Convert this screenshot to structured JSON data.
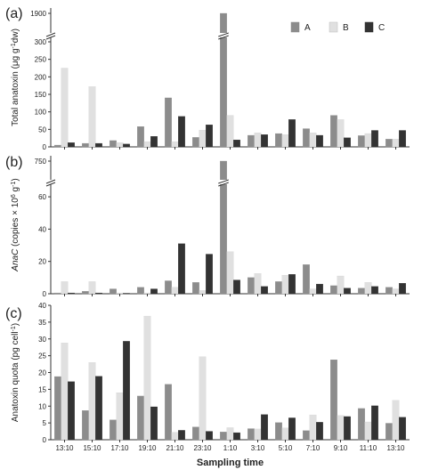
{
  "chart_data": [
    {
      "type": "bar",
      "panel_label": "(a)",
      "ylabel_prefix": "Total anatoxin  (μg g",
      "ylabel_sup": "-1",
      "ylabel_suffix": "dw)",
      "axis_break": {
        "low_max": 300,
        "high_value": 1900
      },
      "yticks": [
        0,
        50,
        100,
        150,
        200,
        250,
        300
      ],
      "yticks_high": [
        1900
      ],
      "ylim": [
        0,
        300
      ],
      "categories": [
        "13:10",
        "15:10",
        "17:10",
        "19:10",
        "21:10",
        "23:10",
        "1:10",
        "3:10",
        "5:10",
        "7:10",
        "9:10",
        "11:10",
        "13:10"
      ],
      "series": [
        {
          "name": "A",
          "color": "#8c8c8c",
          "values": [
            5,
            10,
            18,
            58,
            140,
            27,
            1880,
            33,
            38,
            52,
            90,
            32,
            22
          ]
        },
        {
          "name": "B",
          "color": "#e0e0e0",
          "values": [
            225,
            172,
            12,
            15,
            15,
            48,
            90,
            40,
            35,
            40,
            78,
            38,
            22
          ]
        },
        {
          "name": "C",
          "color": "#333333",
          "values": [
            12,
            10,
            8,
            30,
            87,
            63,
            20,
            35,
            78,
            33,
            26,
            47,
            47
          ]
        }
      ],
      "legend": {
        "position": "top-right",
        "entries": [
          "A",
          "B",
          "C"
        ]
      }
    },
    {
      "type": "bar",
      "panel_label": "(b)",
      "ylabel_italic": "AnaC",
      "ylabel_prefix": " (copies × 10",
      "ylabel_sup6": "6",
      "ylabel_mid": " g",
      "ylabel_sup": "-1",
      "ylabel_suffix": ")",
      "axis_break": {
        "low_max": 65,
        "high_value": 750
      },
      "yticks": [
        0,
        20,
        40,
        60
      ],
      "yticks_high": [
        750
      ],
      "ylim": [
        0,
        65
      ],
      "categories": [
        "13:10",
        "15:10",
        "17:10",
        "19:10",
        "21:10",
        "23:10",
        "1:10",
        "3:10",
        "5:10",
        "7:10",
        "9:10",
        "11:10",
        "13:10"
      ],
      "series": [
        {
          "name": "A",
          "color": "#8c8c8c",
          "values": [
            0.5,
            1.5,
            3,
            4,
            8,
            7,
            750,
            10,
            7.5,
            18,
            5,
            3.5,
            4
          ]
        },
        {
          "name": "B",
          "color": "#e0e0e0",
          "values": [
            7.5,
            7.5,
            0.5,
            0.5,
            4,
            2,
            26,
            12.5,
            11.5,
            3,
            11,
            7,
            3
          ]
        },
        {
          "name": "C",
          "color": "#333333",
          "values": [
            0.5,
            0.5,
            0.3,
            3,
            31,
            24.5,
            8.5,
            4.5,
            12,
            6,
            3.5,
            4.5,
            6.5
          ]
        }
      ]
    },
    {
      "type": "bar",
      "panel_label": "(c)",
      "ylabel_prefix": "Anatoxin quota (pg cell",
      "ylabel_sup": "-1",
      "ylabel_suffix": ")",
      "xlabel": "Sampling time",
      "yticks": [
        0,
        5,
        10,
        15,
        20,
        25,
        30,
        35,
        40
      ],
      "ylim": [
        0,
        40
      ],
      "categories": [
        "13:10",
        "15:10",
        "17:10",
        "19:10",
        "21:10",
        "23:10",
        "1:10",
        "3:10",
        "5:10",
        "7:10",
        "9:10",
        "11:10",
        "13:10"
      ],
      "series": [
        {
          "name": "A",
          "color": "#8c8c8c",
          "values": [
            18.8,
            8.7,
            5.9,
            13,
            16.5,
            3.8,
            2.3,
            3.3,
            5.1,
            2.7,
            23.8,
            9.3,
            4.9
          ]
        },
        {
          "name": "B",
          "color": "#e0e0e0",
          "values": [
            28.8,
            23,
            14,
            36.8,
            2.2,
            24.7,
            3.6,
            3.2,
            3.5,
            7.4,
            7.2,
            5.3,
            11.7
          ]
        },
        {
          "name": "C",
          "color": "#333333",
          "values": [
            17.3,
            18.9,
            29.3,
            9.8,
            2.8,
            2.5,
            2.1,
            7.5,
            6.5,
            5.2,
            6.9,
            10.1,
            6.7
          ]
        }
      ]
    }
  ]
}
